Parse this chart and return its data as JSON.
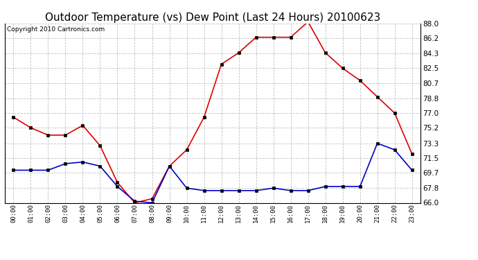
{
  "title": "Outdoor Temperature (vs) Dew Point (Last 24 Hours) 20100623",
  "copyright": "Copyright 2010 Cartronics.com",
  "x_labels": [
    "00:00",
    "01:00",
    "02:00",
    "03:00",
    "04:00",
    "05:00",
    "06:00",
    "07:00",
    "08:00",
    "09:00",
    "10:00",
    "11:00",
    "12:00",
    "13:00",
    "14:00",
    "15:00",
    "16:00",
    "17:00",
    "18:00",
    "19:00",
    "20:00",
    "21:00",
    "22:00",
    "23:00"
  ],
  "temp_red": [
    76.5,
    75.2,
    74.3,
    74.3,
    75.5,
    73.0,
    68.5,
    66.0,
    66.5,
    70.5,
    72.5,
    76.5,
    83.0,
    84.4,
    86.3,
    86.3,
    86.3,
    88.2,
    84.4,
    82.5,
    81.0,
    79.0,
    77.0,
    72.0
  ],
  "dew_blue": [
    70.0,
    70.0,
    70.0,
    70.8,
    71.0,
    70.5,
    68.0,
    66.2,
    66.0,
    70.5,
    67.8,
    67.5,
    67.5,
    67.5,
    67.5,
    67.8,
    67.5,
    67.5,
    68.0,
    68.0,
    68.0,
    73.3,
    72.5,
    70.0
  ],
  "ylim": [
    66.0,
    88.0
  ],
  "yticks": [
    66.0,
    67.8,
    69.7,
    71.5,
    73.3,
    75.2,
    77.0,
    78.8,
    80.7,
    82.5,
    84.3,
    86.2,
    88.0
  ],
  "bg_color": "#ffffff",
  "plot_bg": "#ffffff",
  "grid_color": "#c0c0c0",
  "red_color": "#dd0000",
  "blue_color": "#0000cc",
  "title_fontsize": 11,
  "copyright_fontsize": 6.5
}
